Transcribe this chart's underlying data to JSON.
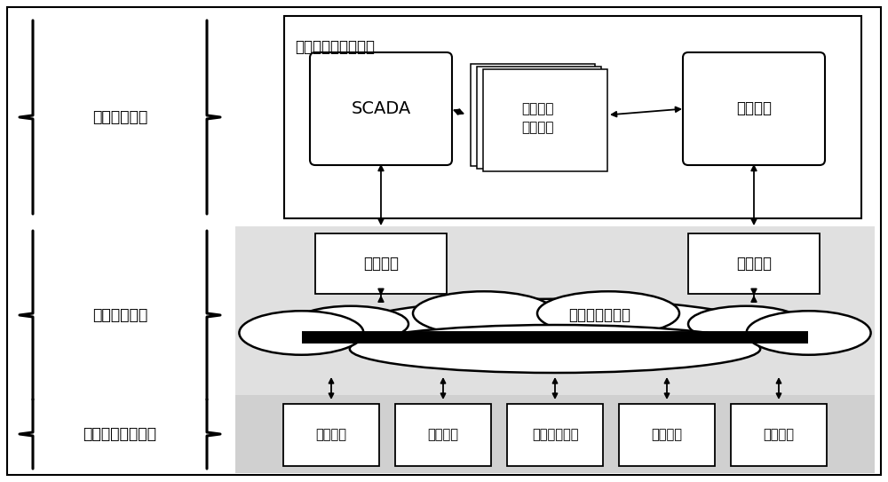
{
  "bg_color": "#ffffff",
  "layer_bg_mid": "#e0e0e0",
  "layer_bg_bottom": "#d0d0d0",
  "top_box_label": "微电网保护控制中心",
  "scada_label": "SCADA",
  "accident_label": "事故分析\n状态估计",
  "optimize_label": "优化决策",
  "gateway_label": "通讯网关",
  "network_label": "微电网通讯网络",
  "layer_labels": [
    "微电网系统层",
    "微电网通讯层",
    "微电网设备执行层"
  ],
  "device_labels": [
    "发电设备",
    "储能设备",
    "继电保护设备",
    "补偿设备",
    "其他设备"
  ],
  "font_path": "SimHei"
}
